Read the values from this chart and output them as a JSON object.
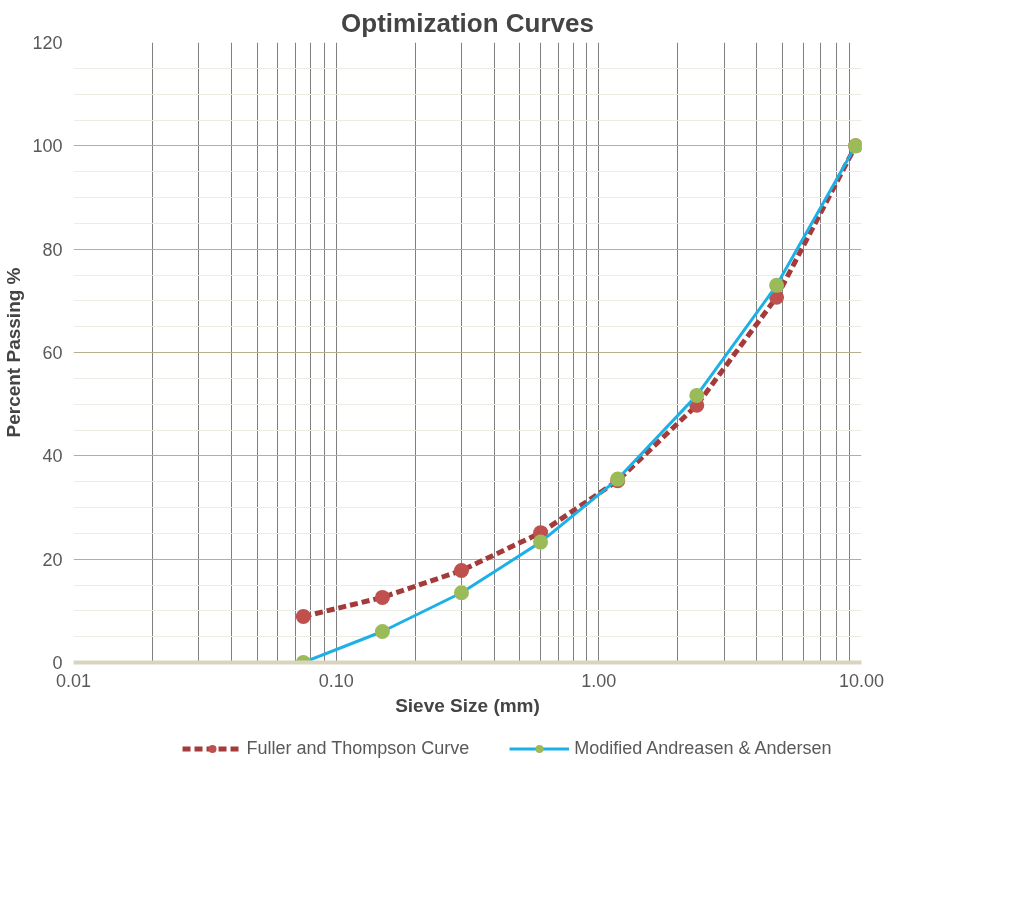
{
  "chart_data": {
    "type": "line",
    "title": "Optimization Curves",
    "xlabel": "Sieve Size (mm)",
    "ylabel": "Percent Passing %",
    "x": [
      0.075,
      0.15,
      0.3,
      0.6,
      1.18,
      2.36,
      4.75,
      9.5
    ],
    "log": "x",
    "xlim": [
      0.01,
      10
    ],
    "xticks": [
      {
        "value": 0.01,
        "label": "0.01"
      },
      {
        "value": 0.1,
        "label": "0.10"
      },
      {
        "value": 1,
        "label": "1.00"
      },
      {
        "value": 10,
        "label": "10.00"
      }
    ],
    "ylim": [
      0,
      120
    ],
    "yticks": [
      0,
      20,
      40,
      60,
      80,
      100,
      120
    ],
    "grid": true,
    "legend": "bottom",
    "marker": "circle",
    "series": [
      {
        "name": "Fuller and Thompson Curve",
        "color": "#a33b3b",
        "colors": [
          "#c0504d",
          "#c0504d",
          "#c0504d",
          "#c0504d",
          "#c0504d",
          "#c0504d",
          "#c0504d",
          "#c0504d"
        ],
        "line_style": "dashed",
        "values": [
          8.9,
          12.6,
          17.8,
          25.1,
          35.2,
          49.8,
          70.7,
          100
        ]
      },
      {
        "name": "Modified Andreasen & Andersen",
        "color": "#1cb0e6",
        "colors": [
          "#9bbb59",
          "#9bbb59",
          "#9bbb59",
          "#9bbb59",
          "#9bbb59",
          "#9bbb59",
          "#9bbb59",
          "#9bbb59"
        ],
        "line_style": "solid",
        "values": [
          0,
          6,
          13.5,
          23.3,
          35.5,
          51.7,
          73,
          100
        ]
      }
    ]
  }
}
